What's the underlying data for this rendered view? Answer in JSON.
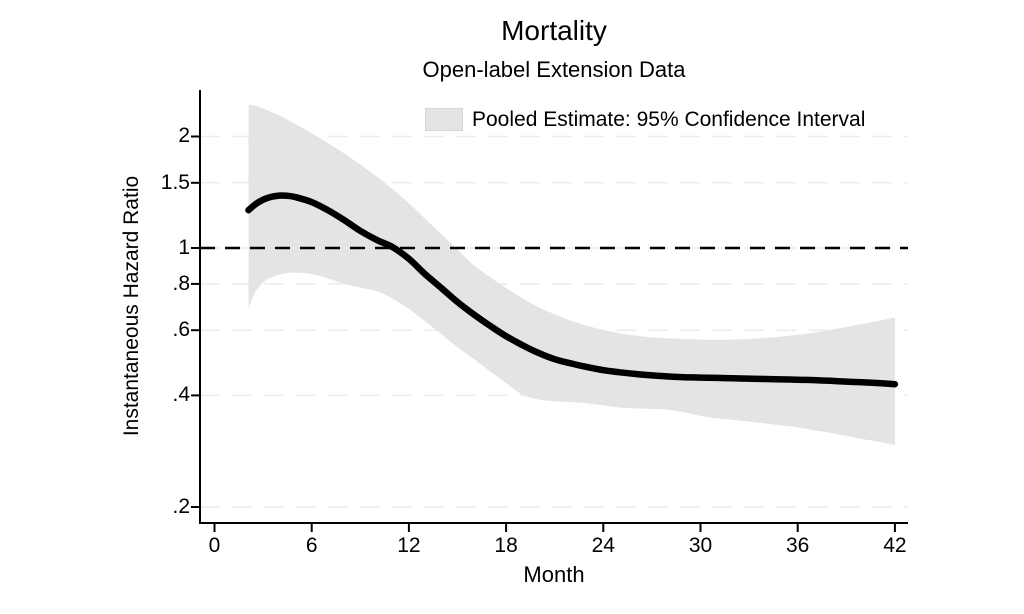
{
  "header": {
    "title": "Mortality",
    "subtitle": "Open-label Extension Data"
  },
  "colors": {
    "ci_band": "#e4e4e4",
    "ci_swatch_border": "#d7d7d7",
    "gridline": "#ececec",
    "estimate_line": "#000000",
    "reference_line": "#000000",
    "axis": "#000000",
    "text": "#000000",
    "background": "#ffffff"
  },
  "chart_data": {
    "type": "line",
    "title": "Mortality",
    "subtitle": "Open-label Extension Data",
    "xlabel": "Month",
    "ylabel": "Instantaneous Hazard Ratio",
    "y_scale": "log",
    "grid": "horizontal, light dashed",
    "legend_position": "top-inside",
    "x_ticks": [
      0,
      6,
      12,
      18,
      24,
      30,
      36,
      42
    ],
    "x_tick_labels": [
      "0",
      "6",
      "12",
      "18",
      "24",
      "30",
      "36",
      "42"
    ],
    "y_ticks": [
      2,
      1.5,
      1,
      0.8,
      0.6,
      0.4,
      0.2
    ],
    "y_tick_labels": [
      "2",
      "1.5",
      "1",
      ".8",
      ".6",
      ".4",
      ".2"
    ],
    "xlim": [
      -0.9,
      42.9
    ],
    "ylim": [
      0.181,
      2.67
    ],
    "reference_line_y": 1,
    "legend": {
      "entries": [
        {
          "label": "Pooled Estimate: 95% Confidence Interval",
          "swatch_color": "#e4e4e4"
        }
      ]
    },
    "x": [
      2.1,
      2.5,
      3,
      3.5,
      4,
      4.5,
      5,
      6,
      7,
      8,
      9,
      10,
      11,
      12,
      13,
      14,
      15,
      16,
      17,
      18,
      19,
      20,
      21,
      22,
      23,
      24,
      25,
      26,
      27,
      28,
      29,
      30,
      31,
      32,
      33,
      34,
      35,
      36,
      37,
      38,
      39,
      40,
      41,
      42
    ],
    "series": [
      {
        "name": "Pooled Estimate",
        "role": "estimate",
        "values": [
          1.265,
          1.31,
          1.35,
          1.374,
          1.385,
          1.383,
          1.372,
          1.33,
          1.265,
          1.19,
          1.112,
          1.052,
          1.005,
          0.935,
          0.85,
          0.78,
          0.715,
          0.662,
          0.617,
          0.578,
          0.547,
          0.521,
          0.501,
          0.488,
          0.477,
          0.468,
          0.462,
          0.457,
          0.453,
          0.45,
          0.448,
          0.447,
          0.446,
          0.445,
          0.444,
          0.443,
          0.442,
          0.441,
          0.44,
          0.438,
          0.436,
          0.434,
          0.432,
          0.429
        ]
      },
      {
        "name": "95% CI Upper",
        "role": "ci-upper",
        "values": [
          2.435,
          2.42,
          2.38,
          2.33,
          2.28,
          2.22,
          2.16,
          2.04,
          1.92,
          1.8,
          1.68,
          1.56,
          1.44,
          1.32,
          1.2,
          1.09,
          0.99,
          0.9,
          0.835,
          0.78,
          0.732,
          0.693,
          0.662,
          0.637,
          0.617,
          0.601,
          0.589,
          0.58,
          0.574,
          0.57,
          0.568,
          0.566,
          0.5655,
          0.566,
          0.568,
          0.572,
          0.577,
          0.583,
          0.591,
          0.601,
          0.612,
          0.624,
          0.636,
          0.649
        ]
      },
      {
        "name": "95% CI Lower",
        "role": "ci-lower",
        "values": [
          0.685,
          0.757,
          0.806,
          0.833,
          0.847,
          0.856,
          0.858,
          0.851,
          0.828,
          0.801,
          0.782,
          0.765,
          0.73,
          0.685,
          0.634,
          0.585,
          0.54,
          0.502,
          0.465,
          0.432,
          0.402,
          0.39,
          0.386,
          0.384,
          0.381,
          0.376,
          0.371,
          0.369,
          0.368,
          0.366,
          0.36,
          0.352,
          0.347,
          0.344,
          0.34,
          0.336,
          0.332,
          0.328,
          0.322,
          0.317,
          0.311,
          0.305,
          0.3,
          0.294
        ]
      }
    ]
  }
}
